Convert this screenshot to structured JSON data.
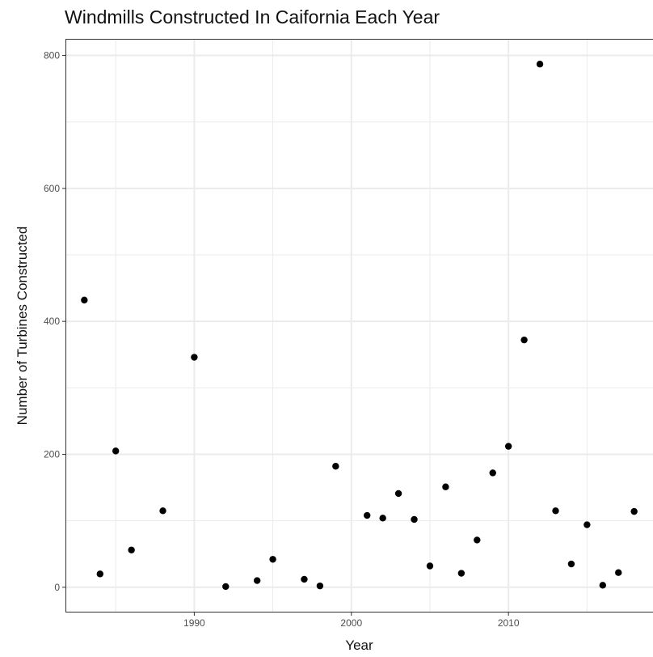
{
  "chart_data": {
    "type": "scatter",
    "title": "Windmills Constructed In Caifornia Each Year",
    "xlabel": "Year",
    "ylabel": "Number of Turbines Constructed",
    "xlim": [
      1981.8,
      2019.2
    ],
    "ylim": [
      -38,
      825
    ],
    "x_major_ticks": [
      1990,
      2000,
      2010
    ],
    "x_minor_ticks": [
      1985,
      1995,
      2005,
      2015
    ],
    "y_major_ticks": [
      0,
      200,
      400,
      600,
      800
    ],
    "y_minor_ticks": [
      100,
      300,
      500,
      700
    ],
    "grid": true,
    "point_color": "#000000",
    "grid_color": "#ebebeb",
    "series": [
      {
        "x": [
          1983,
          1984,
          1985,
          1986,
          1988,
          1990,
          1992,
          1994,
          1995,
          1997,
          1998,
          1999,
          2001,
          2002,
          2003,
          2004,
          2005,
          2006,
          2007,
          2008,
          2009,
          2010,
          2011,
          2012,
          2013,
          2014,
          2015,
          2016,
          2017,
          2018
        ],
        "y": [
          432,
          20,
          205,
          56,
          115,
          346,
          1,
          10,
          42,
          12,
          2,
          182,
          108,
          104,
          141,
          102,
          32,
          151,
          21,
          71,
          172,
          212,
          372,
          787,
          115,
          35,
          94,
          3,
          22,
          114
        ]
      }
    ]
  }
}
